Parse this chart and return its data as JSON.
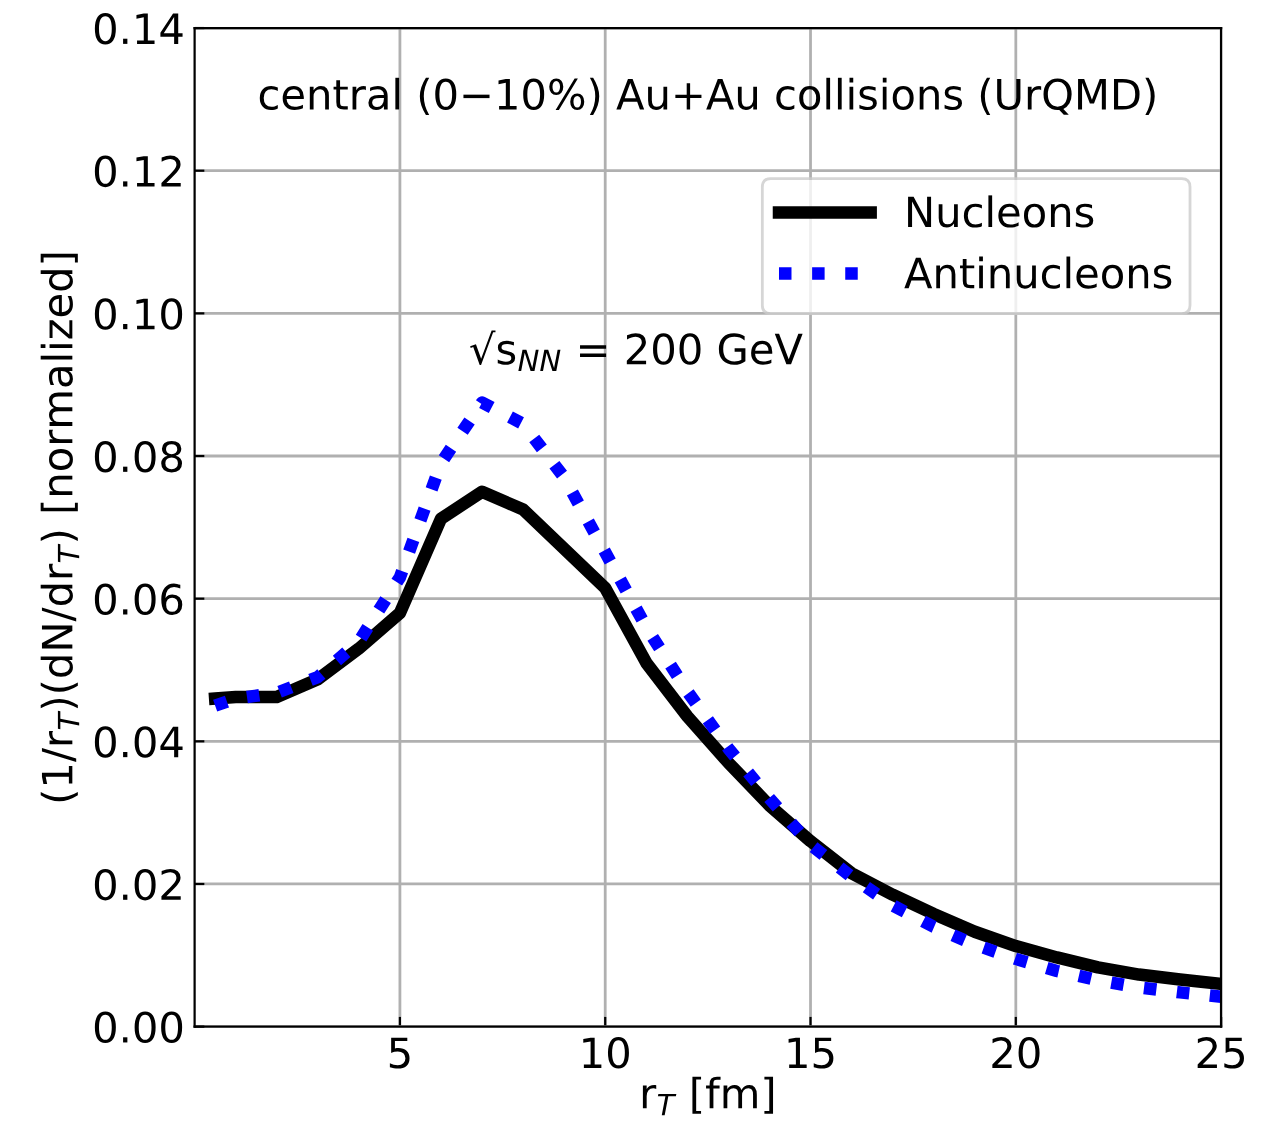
{
  "chart_data": {
    "type": "line",
    "xlabel": "r$_{T}$ [fm]",
    "ylabel": "(1/r$_{T}$)(dN/dr$_{T}$) [normalized]",
    "x": [
      0.5,
      1,
      2,
      3,
      4,
      5,
      6,
      7,
      8,
      9,
      10,
      11,
      12,
      13,
      14,
      15,
      16,
      17,
      18,
      19,
      20,
      21,
      22,
      23,
      24,
      25
    ],
    "series": [
      {
        "name": "Nucleons",
        "color": "#000000",
        "line_style": "solid",
        "values": [
          0.046,
          0.0462,
          0.0462,
          0.0487,
          0.053,
          0.058,
          0.0712,
          0.075,
          0.0725,
          0.067,
          0.0615,
          0.051,
          0.0435,
          0.037,
          0.031,
          0.026,
          0.0215,
          0.0185,
          0.0158,
          0.0133,
          0.0113,
          0.0097,
          0.0083,
          0.0073,
          0.0066,
          0.006
        ]
      },
      {
        "name": "Antinucleons",
        "color": "#0000ff",
        "line_style": "dotted",
        "values": [
          0.045,
          0.046,
          0.0468,
          0.049,
          0.054,
          0.063,
          0.079,
          0.0875,
          0.0845,
          0.077,
          0.0665,
          0.056,
          0.047,
          0.039,
          0.032,
          0.0255,
          0.021,
          0.017,
          0.014,
          0.0115,
          0.0095,
          0.0078,
          0.0065,
          0.0055,
          0.0048,
          0.0042
        ]
      }
    ],
    "xlim": [
      0,
      25
    ],
    "xticks": [
      5,
      10,
      15,
      20,
      25
    ],
    "ylim": [
      0,
      0.14
    ],
    "yticks": [
      {
        "value": 0,
        "label": "0.00"
      },
      {
        "value": 0.02,
        "label": "0.02"
      },
      {
        "value": 0.04,
        "label": "0.04"
      },
      {
        "value": 0.06,
        "label": "0.06"
      },
      {
        "value": 0.08,
        "label": "0.08"
      },
      {
        "value": 0.1,
        "label": "0.10"
      },
      {
        "value": 0.12,
        "label": "0.12"
      },
      {
        "value": 0.14,
        "label": "0.14"
      }
    ],
    "grid": true,
    "legend": "top right",
    "marker": "none",
    "annotations": [
      "central (0−10%) Au+Au collisions (UrQMD)",
      "√s$_{NN}$ = 200 GeV"
    ]
  }
}
